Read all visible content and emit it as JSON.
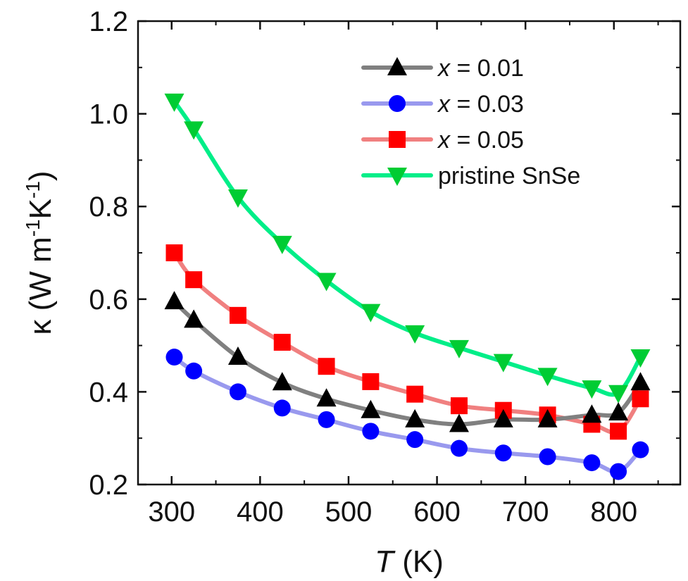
{
  "chart_data": {
    "type": "line",
    "xlabel": {
      "italic": "T",
      "rest": " (K)"
    },
    "ylabel": {
      "kappa": "κ",
      "main": " (W m",
      "sup1": "-1",
      "mid": "K",
      "sup2": "-1",
      "end": ")"
    },
    "xlim": [
      262,
      875
    ],
    "ylim": [
      0.2,
      1.2
    ],
    "xticks": [
      300,
      400,
      500,
      600,
      700,
      800
    ],
    "yticks": [
      "0.2",
      "0.4",
      "0.6",
      "0.8",
      "1.0",
      "1.2"
    ],
    "grid": false,
    "legend_position": "top-right",
    "series": [
      {
        "name": "x = 0.01",
        "legend_italic": "x",
        "legend_rest": " = 0.01",
        "marker": "triangle-up",
        "marker_color": "#000000",
        "line_color": "#808080",
        "x": [
          303,
          325,
          375,
          425,
          475,
          525,
          575,
          625,
          675,
          725,
          775,
          805,
          830
        ],
        "y": [
          0.595,
          0.555,
          0.475,
          0.42,
          0.385,
          0.36,
          0.34,
          0.33,
          0.34,
          0.34,
          0.35,
          0.355,
          0.42
        ]
      },
      {
        "name": "x = 0.03",
        "legend_italic": "x",
        "legend_rest": " = 0.03",
        "marker": "circle",
        "marker_color": "#0000ff",
        "line_color": "#9999ee",
        "x": [
          303,
          325,
          375,
          425,
          475,
          525,
          575,
          625,
          675,
          725,
          775,
          805,
          830
        ],
        "y": [
          0.475,
          0.445,
          0.4,
          0.365,
          0.34,
          0.315,
          0.297,
          0.278,
          0.268,
          0.26,
          0.247,
          0.228,
          0.275
        ]
      },
      {
        "name": "x = 0.05",
        "legend_italic": "x",
        "legend_rest": " = 0.05",
        "marker": "square",
        "marker_color": "#ff0000",
        "line_color": "#f08080",
        "x": [
          303,
          325,
          375,
          425,
          475,
          525,
          575,
          625,
          675,
          725,
          775,
          805,
          830
        ],
        "y": [
          0.7,
          0.642,
          0.565,
          0.507,
          0.455,
          0.422,
          0.395,
          0.37,
          0.36,
          0.35,
          0.33,
          0.315,
          0.385
        ]
      },
      {
        "name": "pristine SnSe",
        "legend_italic": "",
        "legend_rest": "pristine SnSe",
        "marker": "triangle-down",
        "marker_color": "#00cc33",
        "line_color": "#00ee88",
        "x": [
          303,
          325,
          375,
          425,
          475,
          525,
          575,
          625,
          675,
          725,
          775,
          805,
          830
        ],
        "y": [
          1.027,
          0.967,
          0.82,
          0.72,
          0.64,
          0.573,
          0.527,
          0.495,
          0.465,
          0.435,
          0.408,
          0.398,
          0.475
        ]
      }
    ]
  }
}
